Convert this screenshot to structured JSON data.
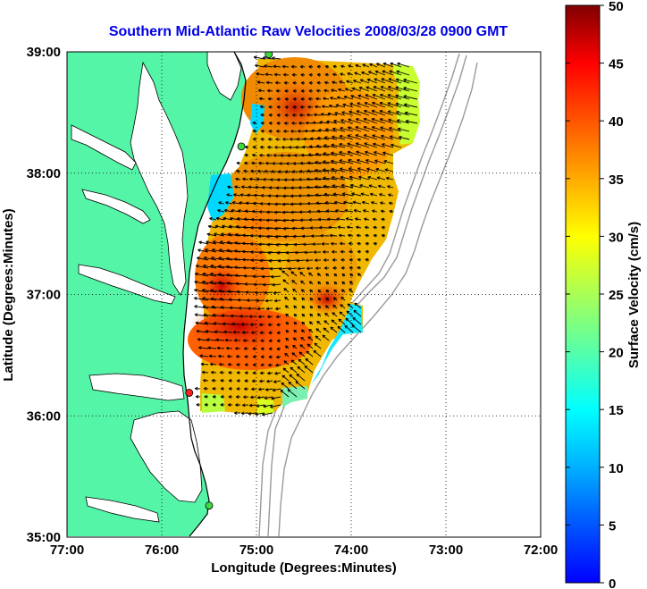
{
  "title": "Southern Mid-Atlantic Raw Velocities 2008/03/28 0900 GMT",
  "x_axis": {
    "label": "Longitude (Degrees:Minutes)",
    "ticks": [
      "77:00",
      "76:00",
      "75:00",
      "74:00",
      "73:00",
      "72:00"
    ]
  },
  "y_axis": {
    "label": "Latitude (Degrees:Minutes)",
    "ticks": [
      "39:00",
      "38:00",
      "37:00",
      "36:00",
      "35:00"
    ]
  },
  "colorbar": {
    "label": "Surface Velocity (cm/s)",
    "ticks": [
      "50",
      "45",
      "40",
      "35",
      "30",
      "25",
      "20",
      "15",
      "10",
      "5",
      "0"
    ],
    "min": 0,
    "max": 50,
    "colormap": "jet"
  },
  "colors": {
    "land": "#55f5a8",
    "ocean": "#ffffff",
    "coastline": "#000000",
    "bathymetry": "#9a9a9a",
    "title": "#0000e6",
    "station_green": "#3ddc3d",
    "station_red": "#ff2020"
  },
  "map": {
    "lon_range": [
      -77,
      -72
    ],
    "lat_range": [
      35,
      39
    ],
    "grid": true,
    "stations": [
      {
        "lon": -74.87,
        "lat": 38.98,
        "color": "green"
      },
      {
        "lon": -75.16,
        "lat": 38.22,
        "color": "green"
      },
      {
        "lon": -75.71,
        "lat": 36.19,
        "color": "red"
      },
      {
        "lon": -75.5,
        "lat": 35.26,
        "color": "green"
      }
    ]
  }
}
